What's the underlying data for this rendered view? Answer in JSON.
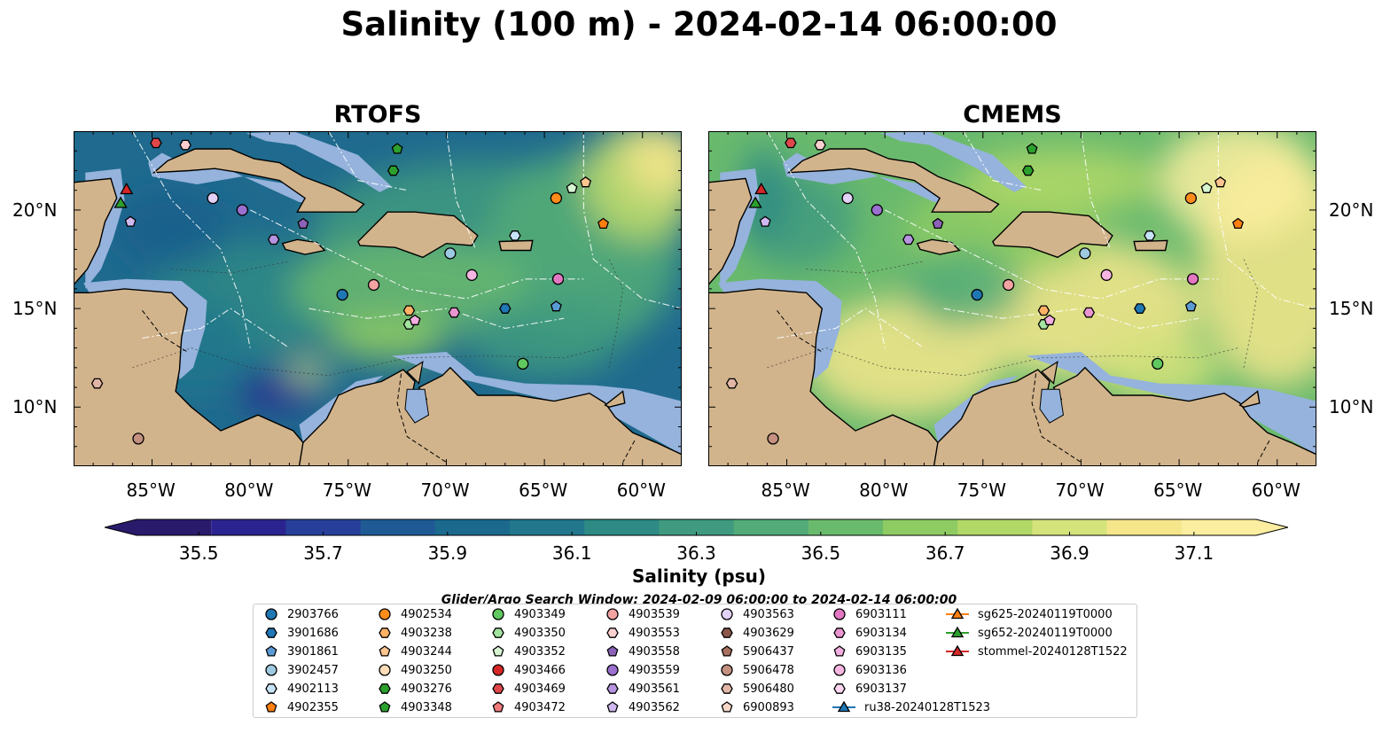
{
  "title": "Salinity (100 m) - 2024-02-14 06:00:00",
  "panels": [
    {
      "title": "RTOFS",
      "palette": "rtofs"
    },
    {
      "title": "CMEMS",
      "palette": "cmems"
    }
  ],
  "axes": {
    "lon_ticks": [
      "85°W",
      "80°W",
      "75°W",
      "70°W",
      "65°W",
      "60°W"
    ],
    "lat_ticks": [
      "20°N",
      "15°N",
      "10°N"
    ],
    "lon_range": [
      -89,
      -58
    ],
    "lat_range": [
      7,
      24
    ]
  },
  "colors": {
    "land": "#d2b48c",
    "shallow_water": "#95b3dc",
    "pacific": "#2a1a66"
  },
  "colorbar": {
    "label": "Salinity (psu)",
    "ticks": [
      "35.5",
      "35.7",
      "35.9",
      "36.1",
      "36.3",
      "36.5",
      "36.7",
      "36.9",
      "37.1"
    ],
    "range": [
      35.4,
      37.2
    ],
    "colors": [
      "#2a1a6b",
      "#2b2490",
      "#283f9a",
      "#1f5a94",
      "#1b6a8e",
      "#22778c",
      "#2d8a85",
      "#3f9a7f",
      "#52ab78",
      "#6aba6e",
      "#8fcb63",
      "#b2d867",
      "#d5e37b",
      "#f5e68b",
      "#fbeea0"
    ]
  },
  "search_window": "Glider/Argo Search Window: 2024-02-09 06:00:00 to 2024-02-14 06:00:00",
  "legend": [
    {
      "label": "2903766",
      "marker": "circle",
      "color": "#1f77b4"
    },
    {
      "label": "3901686",
      "marker": "hexagon",
      "color": "#1f77b4"
    },
    {
      "label": "3901861",
      "marker": "pentagon",
      "color": "#5b9bd5"
    },
    {
      "label": "3902457",
      "marker": "circle",
      "color": "#9ecae1"
    },
    {
      "label": "4902113",
      "marker": "hexagon",
      "color": "#c6e3f7"
    },
    {
      "label": "4902355",
      "marker": "pentagon",
      "color": "#ff7f0e"
    },
    {
      "label": "4902534",
      "marker": "circle",
      "color": "#ff8c1a"
    },
    {
      "label": "4903238",
      "marker": "hexagon",
      "color": "#ffb266"
    },
    {
      "label": "4903244",
      "marker": "pentagon",
      "color": "#ffc58f"
    },
    {
      "label": "4903250",
      "marker": "circle",
      "color": "#ffdcb8"
    },
    {
      "label": "4903276",
      "marker": "hexagon",
      "color": "#2ca02c"
    },
    {
      "label": "4903348",
      "marker": "pentagon",
      "color": "#2ca02c"
    },
    {
      "label": "4903349",
      "marker": "circle",
      "color": "#5fc95f"
    },
    {
      "label": "4903350",
      "marker": "hexagon",
      "color": "#a3e4a0"
    },
    {
      "label": "4903352",
      "marker": "pentagon",
      "color": "#d8f5d2"
    },
    {
      "label": "4903466",
      "marker": "circle",
      "color": "#d62728"
    },
    {
      "label": "4903469",
      "marker": "hexagon",
      "color": "#e0474a"
    },
    {
      "label": "4903472",
      "marker": "pentagon",
      "color": "#f07a7a"
    },
    {
      "label": "4903539",
      "marker": "circle",
      "color": "#f4a3a3"
    },
    {
      "label": "4903553",
      "marker": "hexagon",
      "color": "#fcd0cf"
    },
    {
      "label": "4903558",
      "marker": "pentagon",
      "color": "#8c62b8"
    },
    {
      "label": "4903559",
      "marker": "circle",
      "color": "#9a6fcf"
    },
    {
      "label": "4903561",
      "marker": "hexagon",
      "color": "#b694e0"
    },
    {
      "label": "4903562",
      "marker": "pentagon",
      "color": "#d0b8f0"
    },
    {
      "label": "4903563",
      "marker": "circle",
      "color": "#e2d2f7"
    },
    {
      "label": "4903629",
      "marker": "hexagon",
      "color": "#8c564b"
    },
    {
      "label": "5906437",
      "marker": "pentagon",
      "color": "#a9705f"
    },
    {
      "label": "5906478",
      "marker": "circle",
      "color": "#c49080"
    },
    {
      "label": "5906480",
      "marker": "hexagon",
      "color": "#e2b6a6"
    },
    {
      "label": "6900893",
      "marker": "pentagon",
      "color": "#f7d8c8"
    },
    {
      "label": "6903111",
      "marker": "circle",
      "color": "#e377c2"
    },
    {
      "label": "6903134",
      "marker": "hexagon",
      "color": "#e995d0"
    },
    {
      "label": "6903135",
      "marker": "pentagon",
      "color": "#f3aee0"
    },
    {
      "label": "6903136",
      "marker": "circle",
      "color": "#f7b6e2"
    },
    {
      "label": "6903137",
      "marker": "hexagon",
      "color": "#fcd6f0"
    },
    {
      "label": "ru38-20240128T1523",
      "marker": "triangle-line",
      "color": "#1f77b4"
    },
    {
      "label": "sg625-20240119T0000",
      "marker": "triangle-line",
      "color": "#ff7f0e"
    },
    {
      "label": "sg652-20240119T0000",
      "marker": "triangle-line",
      "color": "#2ca02c"
    },
    {
      "label": "stommel-20240128T1522",
      "marker": "triangle-line",
      "color": "#d62728"
    }
  ],
  "floats": [
    {
      "id": "2903766",
      "lon": -75.3,
      "lat": 15.7
    },
    {
      "id": "3901686",
      "lon": -67.0,
      "lat": 15.0
    },
    {
      "id": "3901861",
      "lon": -64.4,
      "lat": 15.1
    },
    {
      "id": "3902457",
      "lon": -69.8,
      "lat": 17.8
    },
    {
      "id": "4902113",
      "lon": -66.5,
      "lat": 18.7
    },
    {
      "id": "4902355",
      "lon": -62.0,
      "lat": 19.3
    },
    {
      "id": "4902534",
      "lon": -64.4,
      "lat": 20.6
    },
    {
      "id": "4903238",
      "lon": -71.9,
      "lat": 14.9
    },
    {
      "id": "4903244",
      "lon": -62.9,
      "lat": 21.4
    },
    {
      "id": "4903276",
      "lon": -72.7,
      "lat": 22.0
    },
    {
      "id": "4903348",
      "lon": -72.5,
      "lat": 23.1
    },
    {
      "id": "4903349",
      "lon": -66.1,
      "lat": 12.2
    },
    {
      "id": "4903350",
      "lon": -71.9,
      "lat": 14.2
    },
    {
      "id": "4903352",
      "lon": -63.6,
      "lat": 21.1
    },
    {
      "id": "4903469",
      "lon": -84.8,
      "lat": 23.4
    },
    {
      "id": "4903539",
      "lon": -73.7,
      "lat": 16.2
    },
    {
      "id": "4903553",
      "lon": -83.3,
      "lat": 23.3
    },
    {
      "id": "4903558",
      "lon": -77.3,
      "lat": 19.3
    },
    {
      "id": "4903559",
      "lon": -80.4,
      "lat": 20.0
    },
    {
      "id": "4903561",
      "lon": -78.8,
      "lat": 18.5
    },
    {
      "id": "4903562",
      "lon": -86.1,
      "lat": 19.4
    },
    {
      "id": "4903563",
      "lon": -81.9,
      "lat": 20.6
    },
    {
      "id": "5906478",
      "lon": -85.7,
      "lat": 8.4
    },
    {
      "id": "5906480",
      "lon": -87.8,
      "lat": 11.2
    },
    {
      "id": "6903111",
      "lon": -64.3,
      "lat": 16.5
    },
    {
      "id": "6903134",
      "lon": -69.6,
      "lat": 14.8
    },
    {
      "id": "6903135",
      "lon": -71.6,
      "lat": 14.4
    },
    {
      "id": "6903136",
      "lon": -68.7,
      "lat": 16.7
    }
  ],
  "gliders": [
    {
      "id": "stommel-20240128T1522",
      "lon": -86.3,
      "lat": 21.0
    },
    {
      "id": "sg652-20240119T0000",
      "lon": -86.6,
      "lat": 20.3
    }
  ]
}
